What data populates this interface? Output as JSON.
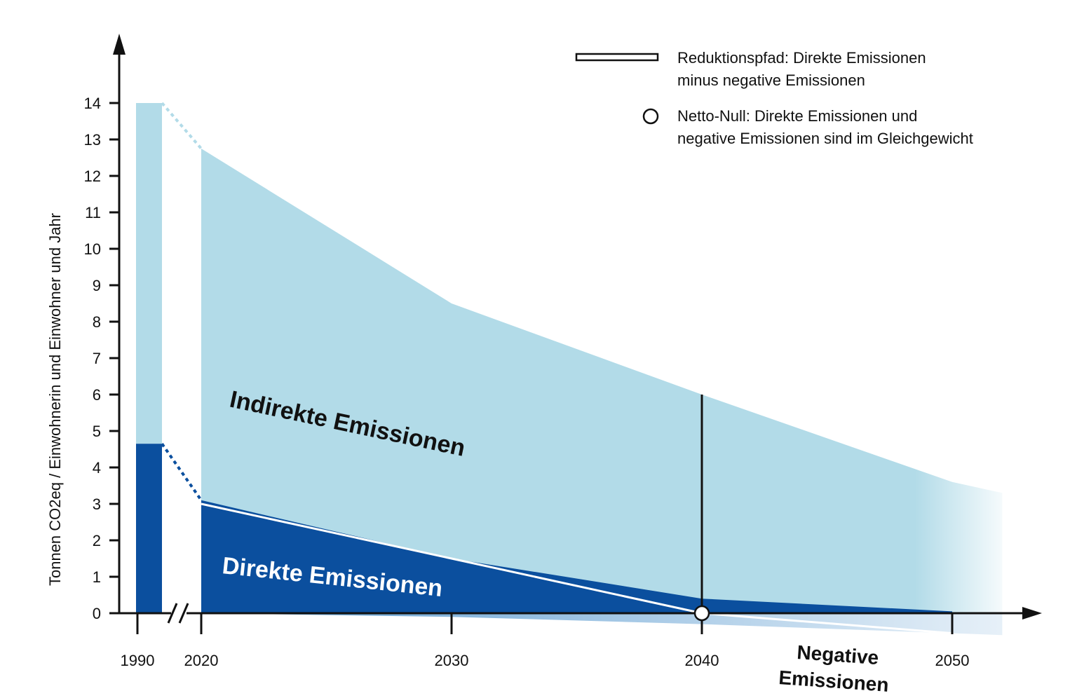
{
  "chart_data": {
    "type": "area",
    "ylabel": "Tonnen CO2eq / Einwohnerin und Einwohner und Jahr",
    "ylim": [
      0,
      14
    ],
    "yticks": [
      "0",
      "1",
      "2",
      "3",
      "4",
      "5",
      "6",
      "7",
      "8",
      "9",
      "10",
      "11",
      "12",
      "13",
      "14"
    ],
    "x_ticks": [
      "1990",
      "2020",
      "2030",
      "2040",
      "2050"
    ],
    "axis_break": "1990-2020",
    "baseline_1990": {
      "label": "1990",
      "total": 14.0,
      "direct": 4.65
    },
    "series": [
      {
        "name": "Indirekte Emissionen",
        "type": "area",
        "color": "#b2dbe8",
        "x": [
          2020,
          2030,
          2040,
          2050,
          2052
        ],
        "values": [
          12.75,
          8.5,
          6.0,
          3.6,
          3.3
        ]
      },
      {
        "name": "Direkte Emissionen",
        "type": "area",
        "color": "#0b4f9e",
        "x": [
          2020,
          2030,
          2040,
          2050
        ],
        "values": [
          3.1,
          1.5,
          0.4,
          0.05
        ]
      },
      {
        "name": "Negative Emissionen",
        "type": "area",
        "color": "#5b9bd0",
        "x": [
          2020,
          2030,
          2040,
          2050,
          2052
        ],
        "values": [
          0.0,
          -0.1,
          -0.3,
          -0.55,
          -0.6
        ]
      },
      {
        "name": "Reduktionspfad: Direkte Emissionen minus negative Emissionen",
        "type": "line",
        "color": "#ffffff",
        "x": [
          2020,
          2030,
          2040,
          2050
        ],
        "values": [
          3.0,
          1.5,
          0.0,
          -0.55
        ]
      }
    ],
    "net_zero": {
      "x": 2040,
      "y": 0
    },
    "marker_line": {
      "x": 2040,
      "y_top": 6.0
    },
    "annotations": {
      "indirect": "Indirekte Emissionen",
      "direct": "Direkte Emissionen",
      "negative_line1": "Negative",
      "negative_line2": "Emissionen"
    },
    "legend": {
      "placement": "top-right",
      "line_item": {
        "line1": "Reduktionspfad: Direkte Emissionen",
        "line2": "minus negative Emissionen"
      },
      "circle_item": {
        "line1": "Netto-Null: Direkte Emissionen und",
        "line2": "negative Emissionen sind im Gleichgewicht"
      }
    }
  }
}
